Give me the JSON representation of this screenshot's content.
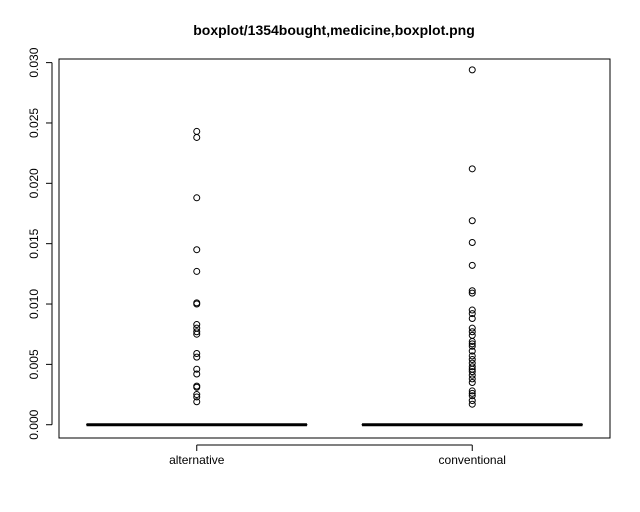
{
  "chart_data": {
    "type": "boxplot",
    "title": "boxplot/1354bought,medicine,boxplot.png",
    "xlabel": "",
    "ylabel": "",
    "ylim": [
      -0.0011,
      0.0303
    ],
    "yticks": [
      0.0,
      0.005,
      0.01,
      0.015,
      0.02,
      0.025,
      0.03
    ],
    "ytick_labels": [
      "0.000",
      "0.005",
      "0.010",
      "0.015",
      "0.020",
      "0.025",
      "0.030"
    ],
    "grid": false,
    "categories": [
      "alternative",
      "conventional"
    ],
    "series": [
      {
        "category": "alternative",
        "q1": 0.0,
        "median": 0.0,
        "q3": 0.0,
        "whisker_low": 0.0,
        "whisker_high": 0.0,
        "outliers": [
          0.0243,
          0.0238,
          0.0188,
          0.0145,
          0.0127,
          0.0101,
          0.01,
          0.0083,
          0.008,
          0.0077,
          0.0075,
          0.0059,
          0.0056,
          0.0046,
          0.0042,
          0.0032,
          0.0031,
          0.0025,
          0.0023,
          0.0019
        ]
      },
      {
        "category": "conventional",
        "q1": 0.0,
        "median": 0.0,
        "q3": 0.0,
        "whisker_low": 0.0,
        "whisker_high": 0.0,
        "outliers": [
          0.0294,
          0.0212,
          0.0169,
          0.0151,
          0.0132,
          0.0111,
          0.0109,
          0.0095,
          0.0092,
          0.0088,
          0.008,
          0.0077,
          0.0074,
          0.0069,
          0.0067,
          0.0065,
          0.0061,
          0.0057,
          0.0054,
          0.0051,
          0.0048,
          0.0046,
          0.0044,
          0.0041,
          0.0038,
          0.0035,
          0.0028,
          0.0026,
          0.0024,
          0.002,
          0.0017
        ]
      }
    ]
  }
}
